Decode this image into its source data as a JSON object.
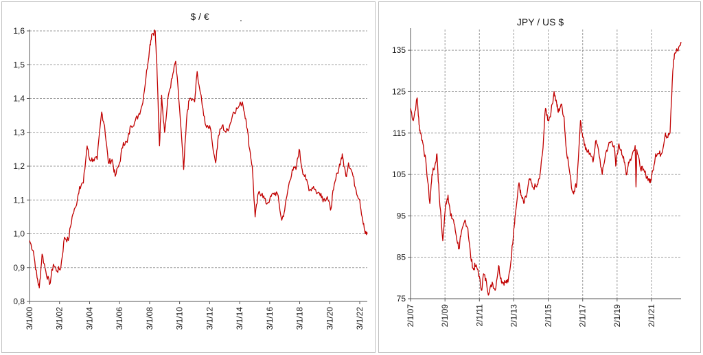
{
  "chart_data": [
    {
      "type": "line",
      "title": "$ / €",
      "title_suffix": ".",
      "xlabel": "",
      "ylabel": "",
      "ylim": [
        0.8,
        1.6
      ],
      "xlim": [
        "2000-03-01",
        "2022-09-01"
      ],
      "grid": "horizontal dashed",
      "line_color": "#c00000",
      "y_ticks": [
        0.8,
        0.9,
        1.0,
        1.1,
        1.2,
        1.3,
        1.4,
        1.5,
        1.6
      ],
      "y_tick_labels": [
        "0,8",
        "0,9",
        "1,0",
        "1,1",
        "1,2",
        "1,3",
        "1,4",
        "1,5",
        "1,6"
      ],
      "x_ticks": [
        "2000-03-01",
        "2002-03-01",
        "2004-03-01",
        "2006-03-01",
        "2008-03-01",
        "2010-03-01",
        "2012-03-01",
        "2014-03-01",
        "2016-03-01",
        "2018-03-01",
        "2020-03-01",
        "2022-03-01"
      ],
      "x_tick_labels": [
        "3/1/00",
        "3/1/02",
        "3/1/04",
        "3/1/06",
        "3/1/08",
        "3/1/10",
        "3/1/12",
        "3/1/14",
        "3/1/16",
        "3/1/18",
        "3/1/20",
        "3/1/22"
      ],
      "series": [
        {
          "x": [
            "2000-03-01",
            "2000-06-01",
            "2000-09-01",
            "2000-10-25",
            "2001-01-01",
            "2001-04-01",
            "2001-07-01",
            "2001-10-01",
            "2002-01-01",
            "2002-04-01",
            "2002-07-01",
            "2002-10-01",
            "2003-01-01",
            "2003-04-01",
            "2003-07-01",
            "2003-10-01",
            "2004-01-01",
            "2004-03-01",
            "2004-06-01",
            "2004-09-01",
            "2004-12-20",
            "2005-03-01",
            "2005-06-01",
            "2005-09-01",
            "2005-11-15",
            "2006-03-01",
            "2006-06-01",
            "2006-09-01",
            "2006-12-01",
            "2007-03-01",
            "2007-06-01",
            "2007-09-01",
            "2007-12-01",
            "2008-03-01",
            "2008-04-20",
            "2008-07-15",
            "2008-09-01",
            "2008-10-27",
            "2008-12-18",
            "2009-03-01",
            "2009-06-01",
            "2009-09-01",
            "2009-11-25",
            "2010-03-01",
            "2010-06-07",
            "2010-09-01",
            "2010-11-01",
            "2011-03-01",
            "2011-05-03",
            "2011-09-01",
            "2011-12-01",
            "2012-03-01",
            "2012-07-24",
            "2012-10-01",
            "2013-01-01",
            "2013-04-01",
            "2013-07-01",
            "2013-10-01",
            "2014-01-01",
            "2014-05-06",
            "2014-08-01",
            "2014-11-01",
            "2015-01-01",
            "2015-03-13",
            "2015-06-01",
            "2015-09-01",
            "2015-12-01",
            "2016-03-01",
            "2016-06-01",
            "2016-09-01",
            "2016-12-20",
            "2017-03-01",
            "2017-06-01",
            "2017-09-01",
            "2017-12-01",
            "2018-02-16",
            "2018-05-01",
            "2018-08-01",
            "2018-11-01",
            "2019-02-01",
            "2019-05-01",
            "2019-08-01",
            "2019-10-01",
            "2020-01-01",
            "2020-03-20",
            "2020-06-01",
            "2020-09-01",
            "2020-12-01",
            "2021-01-06",
            "2021-03-31",
            "2021-06-01",
            "2021-09-01",
            "2021-12-01",
            "2022-03-01",
            "2022-05-13",
            "2022-07-14",
            "2022-09-01"
          ],
          "y": [
            0.98,
            0.95,
            0.87,
            0.84,
            0.94,
            0.89,
            0.85,
            0.91,
            0.89,
            0.9,
            0.99,
            0.98,
            1.05,
            1.08,
            1.14,
            1.15,
            1.26,
            1.22,
            1.22,
            1.22,
            1.36,
            1.32,
            1.21,
            1.22,
            1.17,
            1.21,
            1.27,
            1.27,
            1.32,
            1.33,
            1.35,
            1.38,
            1.46,
            1.55,
            1.59,
            1.6,
            1.47,
            1.26,
            1.41,
            1.3,
            1.41,
            1.46,
            1.51,
            1.37,
            1.19,
            1.36,
            1.4,
            1.39,
            1.48,
            1.38,
            1.32,
            1.32,
            1.21,
            1.29,
            1.32,
            1.3,
            1.32,
            1.36,
            1.37,
            1.39,
            1.34,
            1.25,
            1.2,
            1.05,
            1.12,
            1.12,
            1.09,
            1.1,
            1.12,
            1.12,
            1.04,
            1.07,
            1.14,
            1.19,
            1.19,
            1.25,
            1.19,
            1.16,
            1.13,
            1.14,
            1.12,
            1.12,
            1.1,
            1.11,
            1.07,
            1.13,
            1.18,
            1.22,
            1.23,
            1.17,
            1.21,
            1.18,
            1.13,
            1.1,
            1.04,
            1.0,
            1.0
          ]
        }
      ]
    },
    {
      "type": "line",
      "title": "JPY / US $",
      "xlabel": "",
      "ylabel": "",
      "ylim": [
        75,
        140
      ],
      "xlim": [
        "2007-02-01",
        "2022-10-20"
      ],
      "grid": "both dashed",
      "line_color": "#c00000",
      "y_ticks": [
        75,
        85,
        95,
        105,
        115,
        125,
        135
      ],
      "y_tick_labels": [
        "75",
        "85",
        "95",
        "105",
        "115",
        "125",
        "135"
      ],
      "x_ticks": [
        "2007-02-01",
        "2009-02-01",
        "2011-02-01",
        "2013-02-01",
        "2015-02-01",
        "2017-02-01",
        "2019-02-01",
        "2021-02-01"
      ],
      "x_tick_labels": [
        "2/1/07",
        "2/1/09",
        "2/1/11",
        "2/1/13",
        "2/1/15",
        "2/1/17",
        "2/1/19",
        "2/1/21"
      ],
      "series": [
        {
          "x": [
            "2007-02-01",
            "2007-04-01",
            "2007-06-22",
            "2007-08-01",
            "2007-09-01",
            "2007-11-01",
            "2008-01-01",
            "2008-03-17",
            "2008-05-01",
            "2008-07-01",
            "2008-08-15",
            "2008-10-01",
            "2008-12-17",
            "2009-02-18",
            "2009-04-06",
            "2009-06-01",
            "2009-08-01",
            "2009-10-01",
            "2009-11-27",
            "2010-01-01",
            "2010-04-02",
            "2010-06-01",
            "2010-08-01",
            "2010-10-01",
            "2010-11-01",
            "2011-01-01",
            "2011-03-17",
            "2011-05-01",
            "2011-07-01",
            "2011-08-19",
            "2011-10-31",
            "2012-01-01",
            "2012-03-15",
            "2012-05-01",
            "2012-06-01",
            "2012-08-01",
            "2012-10-01",
            "2012-12-01",
            "2013-02-01",
            "2013-03-01",
            "2013-05-22",
            "2013-07-01",
            "2013-09-01",
            "2013-11-01",
            "2014-01-01",
            "2014-03-01",
            "2014-06-01",
            "2014-08-01",
            "2014-10-01",
            "2014-12-05",
            "2015-02-01",
            "2015-04-01",
            "2015-06-05",
            "2015-08-01",
            "2015-09-01",
            "2015-11-01",
            "2016-01-01",
            "2016-02-11",
            "2016-04-01",
            "2016-06-24",
            "2016-08-01",
            "2016-10-01",
            "2016-12-15",
            "2017-02-01",
            "2017-04-01",
            "2017-06-01",
            "2017-09-08",
            "2017-11-01",
            "2018-01-01",
            "2018-03-23",
            "2018-06-01",
            "2018-08-01",
            "2018-10-01",
            "2018-12-01",
            "2019-01-03",
            "2019-03-01",
            "2019-05-01",
            "2019-07-01",
            "2019-08-26",
            "2019-10-01",
            "2019-12-01",
            "2020-02-20",
            "2020-03-09",
            "2020-03-24",
            "2020-06-01",
            "2020-08-01",
            "2020-10-01",
            "2020-12-01",
            "2021-01-06",
            "2021-03-01",
            "2021-05-01",
            "2021-07-01",
            "2021-09-01",
            "2021-11-24",
            "2022-01-01",
            "2022-03-01",
            "2022-04-28",
            "2022-06-01",
            "2022-08-01",
            "2022-10-20"
          ],
          "y": [
            121,
            118,
            123.5,
            117,
            115,
            112,
            107,
            98,
            105,
            107,
            110,
            100,
            89,
            98,
            100,
            95,
            94,
            90,
            87,
            90,
            94,
            92,
            85,
            82,
            83,
            82,
            77,
            81,
            79,
            76,
            79,
            77,
            83,
            80,
            79,
            79,
            79,
            84,
            92,
            95,
            103,
            100,
            98,
            100,
            104,
            102,
            102,
            104,
            110,
            121,
            118,
            120,
            125,
            122,
            120,
            122,
            119,
            112,
            108,
            101,
            101,
            103,
            118,
            114,
            111,
            111,
            108,
            113,
            111,
            105,
            110,
            112,
            113,
            112,
            107,
            112,
            111,
            108,
            105,
            108,
            109,
            112,
            102,
            111,
            107,
            106,
            105,
            104,
            103,
            106,
            110,
            110,
            110,
            115,
            114,
            115,
            130,
            134,
            135,
            137
          ]
        }
      ]
    }
  ]
}
